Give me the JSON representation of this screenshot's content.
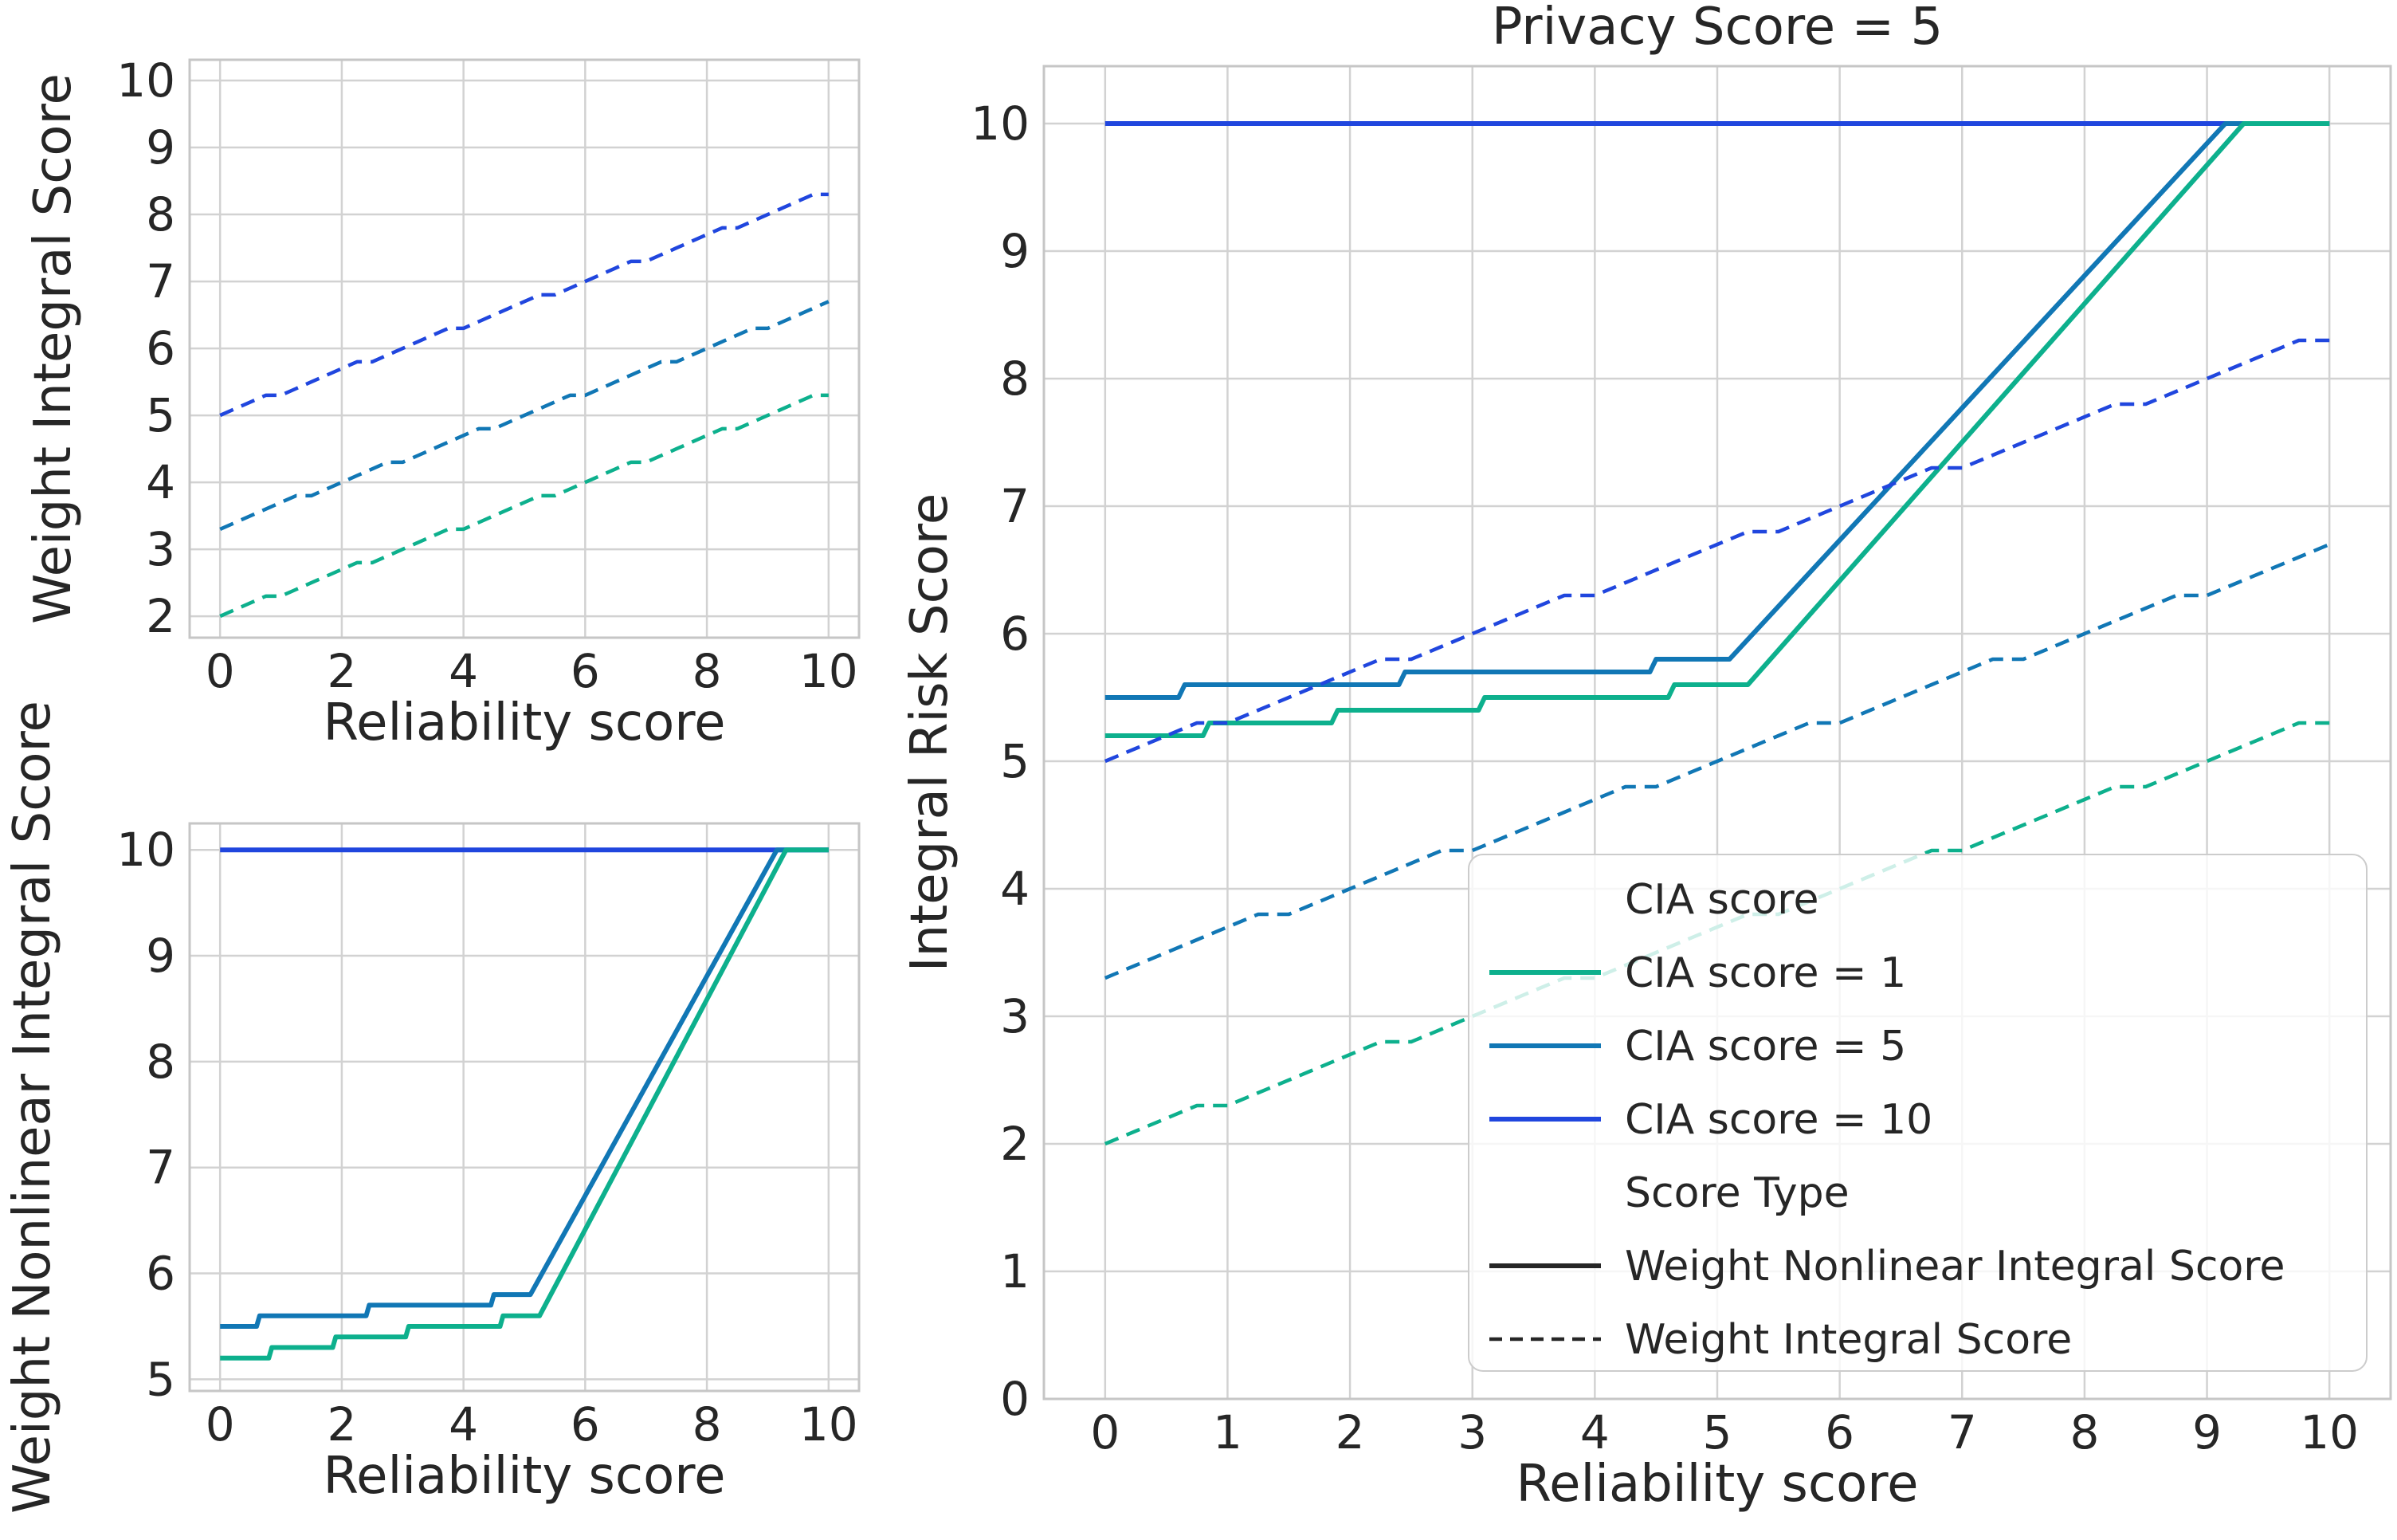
{
  "figure": {
    "background": "#ffffff",
    "title_right_plot": "Privacy Score = 5"
  },
  "palette": {
    "cia_1": "#0db08d",
    "cia_5": "#1177b5",
    "cia_10": "#2046de",
    "text": "#262626",
    "grid": "#d2d2d2",
    "spine": "#c6c6c6",
    "legend_border": "#cccccc",
    "legend_bg_alpha": 0.8,
    "black_handle": "#262626"
  },
  "labels": {
    "xlabel": "Reliability score",
    "ylabel_top_left": "Weight Integral Score",
    "ylabel_bottom_left": "Weight Nonlinear Integral Score",
    "ylabel_right": "Integral Risk Score",
    "title_right": "Privacy Score = 5"
  },
  "legend": {
    "entries": [
      {
        "kind": "header",
        "label": "CIA score"
      },
      {
        "kind": "line",
        "style": "solid",
        "color": "cia_1",
        "label": "CIA score = 1"
      },
      {
        "kind": "line",
        "style": "solid",
        "color": "cia_5",
        "label": "CIA score = 5"
      },
      {
        "kind": "line",
        "style": "solid",
        "color": "cia_10",
        "label": "CIA score = 10"
      },
      {
        "kind": "header",
        "label": "Score Type"
      },
      {
        "kind": "line",
        "style": "solid",
        "color": "black_handle",
        "label": "Weight Nonlinear Integral Score"
      },
      {
        "kind": "line",
        "style": "dashed",
        "color": "black_handle",
        "label": "Weight Integral Score"
      }
    ]
  },
  "chart_data": {
    "type": "line",
    "series_points": {
      "wi_cia10": {
        "name": "Weight Integral Score, CIA score = 10",
        "points": [
          [
            0,
            5.0
          ],
          [
            0.25,
            5.1
          ],
          [
            0.5,
            5.2
          ],
          [
            0.75,
            5.3
          ],
          [
            1,
            5.3
          ],
          [
            1.25,
            5.4
          ],
          [
            1.5,
            5.5
          ],
          [
            1.75,
            5.6
          ],
          [
            2,
            5.7
          ],
          [
            2.25,
            5.8
          ],
          [
            2.5,
            5.8
          ],
          [
            2.75,
            5.9
          ],
          [
            3,
            6.0
          ],
          [
            3.25,
            6.1
          ],
          [
            3.5,
            6.2
          ],
          [
            3.75,
            6.3
          ],
          [
            4,
            6.3
          ],
          [
            4.25,
            6.4
          ],
          [
            4.5,
            6.5
          ],
          [
            4.75,
            6.6
          ],
          [
            5,
            6.7
          ],
          [
            5.25,
            6.8
          ],
          [
            5.5,
            6.8
          ],
          [
            5.75,
            6.9
          ],
          [
            6,
            7.0
          ],
          [
            6.25,
            7.1
          ],
          [
            6.5,
            7.2
          ],
          [
            6.75,
            7.3
          ],
          [
            7,
            7.3
          ],
          [
            7.25,
            7.4
          ],
          [
            7.5,
            7.5
          ],
          [
            7.75,
            7.6
          ],
          [
            8,
            7.7
          ],
          [
            8.25,
            7.8
          ],
          [
            8.5,
            7.8
          ],
          [
            8.75,
            7.9
          ],
          [
            9,
            8.0
          ],
          [
            9.25,
            8.1
          ],
          [
            9.5,
            8.2
          ],
          [
            9.75,
            8.3
          ],
          [
            10,
            8.3
          ]
        ]
      },
      "wi_cia5": {
        "name": "Weight Integral Score, CIA score = 5",
        "points": [
          [
            0,
            3.3
          ],
          [
            0.25,
            3.4
          ],
          [
            0.5,
            3.5
          ],
          [
            0.75,
            3.6
          ],
          [
            1,
            3.7
          ],
          [
            1.25,
            3.8
          ],
          [
            1.5,
            3.8
          ],
          [
            1.75,
            3.9
          ],
          [
            2,
            4.0
          ],
          [
            2.25,
            4.1
          ],
          [
            2.5,
            4.2
          ],
          [
            2.75,
            4.3
          ],
          [
            3,
            4.3
          ],
          [
            3.25,
            4.4
          ],
          [
            3.5,
            4.5
          ],
          [
            3.75,
            4.6
          ],
          [
            4,
            4.7
          ],
          [
            4.25,
            4.8
          ],
          [
            4.5,
            4.8
          ],
          [
            4.75,
            4.9
          ],
          [
            5,
            5.0
          ],
          [
            5.25,
            5.1
          ],
          [
            5.5,
            5.2
          ],
          [
            5.75,
            5.3
          ],
          [
            6,
            5.3
          ],
          [
            6.25,
            5.4
          ],
          [
            6.5,
            5.5
          ],
          [
            6.75,
            5.6
          ],
          [
            7,
            5.7
          ],
          [
            7.25,
            5.8
          ],
          [
            7.5,
            5.8
          ],
          [
            7.75,
            5.9
          ],
          [
            8,
            6.0
          ],
          [
            8.25,
            6.1
          ],
          [
            8.5,
            6.2
          ],
          [
            8.75,
            6.3
          ],
          [
            9,
            6.3
          ],
          [
            9.25,
            6.4
          ],
          [
            9.5,
            6.5
          ],
          [
            9.75,
            6.6
          ],
          [
            10,
            6.7
          ]
        ]
      },
      "wi_cia1": {
        "name": "Weight Integral Score, CIA score = 1",
        "points": [
          [
            0,
            2.0
          ],
          [
            0.25,
            2.1
          ],
          [
            0.5,
            2.2
          ],
          [
            0.75,
            2.3
          ],
          [
            1,
            2.3
          ],
          [
            1.25,
            2.4
          ],
          [
            1.5,
            2.5
          ],
          [
            1.75,
            2.6
          ],
          [
            2,
            2.7
          ],
          [
            2.25,
            2.8
          ],
          [
            2.5,
            2.8
          ],
          [
            2.75,
            2.9
          ],
          [
            3,
            3.0
          ],
          [
            3.25,
            3.1
          ],
          [
            3.5,
            3.2
          ],
          [
            3.75,
            3.3
          ],
          [
            4,
            3.3
          ],
          [
            4.25,
            3.4
          ],
          [
            4.5,
            3.5
          ],
          [
            4.75,
            3.6
          ],
          [
            5,
            3.7
          ],
          [
            5.25,
            3.8
          ],
          [
            5.5,
            3.8
          ],
          [
            5.75,
            3.9
          ],
          [
            6,
            4.0
          ],
          [
            6.25,
            4.1
          ],
          [
            6.5,
            4.2
          ],
          [
            6.75,
            4.3
          ],
          [
            7,
            4.3
          ],
          [
            7.25,
            4.4
          ],
          [
            7.5,
            4.5
          ],
          [
            7.75,
            4.6
          ],
          [
            8,
            4.7
          ],
          [
            8.25,
            4.8
          ],
          [
            8.5,
            4.8
          ],
          [
            8.75,
            4.9
          ],
          [
            9,
            5.0
          ],
          [
            9.25,
            5.1
          ],
          [
            9.5,
            5.2
          ],
          [
            9.75,
            5.3
          ],
          [
            10,
            5.3
          ]
        ]
      },
      "wn_cia10": {
        "name": "Weight Nonlinear Integral Score, CIA score = 10",
        "points": [
          [
            0,
            10
          ],
          [
            10,
            10
          ]
        ]
      },
      "wn_cia5": {
        "name": "Weight Nonlinear Integral Score, CIA score = 5",
        "points": [
          [
            0,
            5.5
          ],
          [
            0.6,
            5.5
          ],
          [
            0.65,
            5.6
          ],
          [
            2.4,
            5.6
          ],
          [
            2.45,
            5.7
          ],
          [
            4.45,
            5.7
          ],
          [
            4.5,
            5.8
          ],
          [
            5.1,
            5.8
          ],
          [
            9.15,
            10
          ],
          [
            10,
            10
          ]
        ]
      },
      "wn_cia1": {
        "name": "Weight Nonlinear Integral Score, CIA score = 1",
        "points": [
          [
            0,
            5.2
          ],
          [
            0.8,
            5.2
          ],
          [
            0.85,
            5.3
          ],
          [
            1.85,
            5.3
          ],
          [
            1.9,
            5.4
          ],
          [
            3.05,
            5.4
          ],
          [
            3.1,
            5.5
          ],
          [
            4.6,
            5.5
          ],
          [
            4.65,
            5.6
          ],
          [
            5.25,
            5.6
          ],
          [
            9.3,
            10
          ],
          [
            10,
            10
          ]
        ]
      }
    },
    "charts": [
      {
        "id": "top_left",
        "title": "",
        "xlabel": "Reliability score",
        "ylabel": "Weight Integral Score",
        "xlim": [
          -0.5,
          10.5
        ],
        "ylim": [
          1.68,
          10.31
        ],
        "xticks": [
          0,
          2,
          4,
          6,
          8,
          10
        ],
        "yticks": [
          2,
          3,
          4,
          5,
          6,
          7,
          8,
          9,
          10
        ],
        "grid": true,
        "series": [
          {
            "ref": "wi_cia10",
            "color": "cia_10",
            "style": "dashed"
          },
          {
            "ref": "wi_cia5",
            "color": "cia_5",
            "style": "dashed"
          },
          {
            "ref": "wi_cia1",
            "color": "cia_1",
            "style": "dashed"
          }
        ]
      },
      {
        "id": "bottom_left",
        "title": "",
        "xlabel": "Reliability score",
        "ylabel": "Weight Nonlinear Integral Score",
        "xlim": [
          -0.5,
          10.5
        ],
        "ylim": [
          4.89,
          10.25
        ],
        "xticks": [
          0,
          2,
          4,
          6,
          8,
          10
        ],
        "yticks": [
          5,
          6,
          7,
          8,
          9,
          10
        ],
        "grid": true,
        "series": [
          {
            "ref": "wn_cia10",
            "color": "cia_10",
            "style": "solid"
          },
          {
            "ref": "wn_cia5",
            "color": "cia_5",
            "style": "solid"
          },
          {
            "ref": "wn_cia1",
            "color": "cia_1",
            "style": "solid"
          }
        ]
      },
      {
        "id": "right",
        "title": "Privacy Score = 5",
        "xlabel": "Reliability score",
        "ylabel": "Integral Risk Score",
        "xlim": [
          -0.5,
          10.5
        ],
        "ylim": [
          0,
          10.45
        ],
        "xticks": [
          0,
          1,
          2,
          3,
          4,
          5,
          6,
          7,
          8,
          9,
          10
        ],
        "yticks": [
          0,
          1,
          2,
          3,
          4,
          5,
          6,
          7,
          8,
          9,
          10
        ],
        "grid": true,
        "legend": true,
        "series": [
          {
            "ref": "wn_cia10",
            "color": "cia_10",
            "style": "solid"
          },
          {
            "ref": "wn_cia5",
            "color": "cia_5",
            "style": "solid"
          },
          {
            "ref": "wn_cia1",
            "color": "cia_1",
            "style": "solid"
          },
          {
            "ref": "wi_cia10",
            "color": "cia_10",
            "style": "dashed"
          },
          {
            "ref": "wi_cia5",
            "color": "cia_5",
            "style": "dashed"
          },
          {
            "ref": "wi_cia1",
            "color": "cia_1",
            "style": "dashed"
          }
        ]
      }
    ]
  }
}
